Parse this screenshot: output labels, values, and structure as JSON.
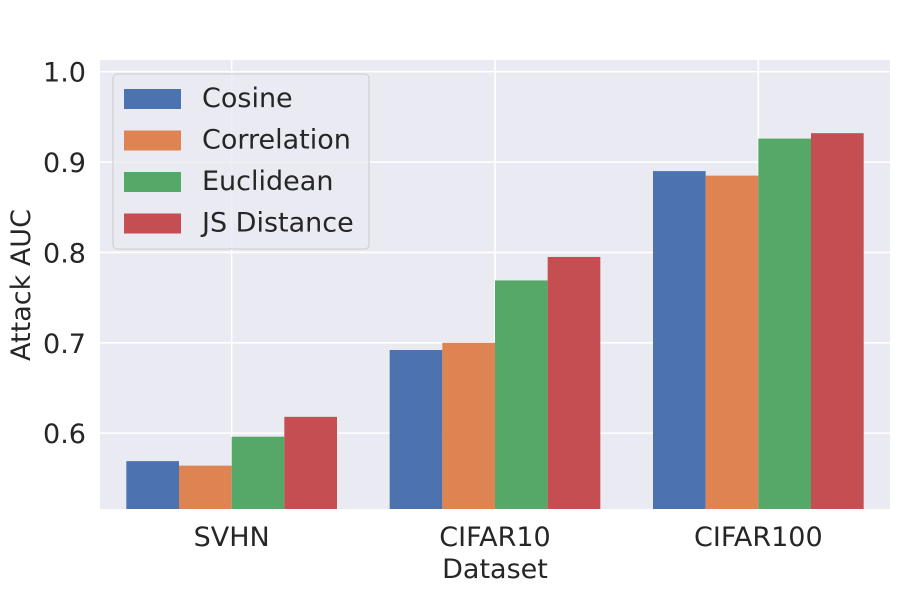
{
  "chart_data": {
    "type": "bar",
    "title": "",
    "xlabel": "Dataset",
    "ylabel": "Attack AUC",
    "categories": [
      "SVHN",
      "CIFAR10",
      "CIFAR100"
    ],
    "series": [
      {
        "name": "Cosine",
        "color": "#4c72b0",
        "values": [
          0.569,
          0.692,
          0.89
        ]
      },
      {
        "name": "Correlation",
        "color": "#dd8452",
        "values": [
          0.564,
          0.7,
          0.885
        ]
      },
      {
        "name": "Euclidean",
        "color": "#55a868",
        "values": [
          0.596,
          0.769,
          0.926
        ]
      },
      {
        "name": "JS Distance",
        "color": "#c44e52",
        "values": [
          0.618,
          0.795,
          0.932
        ]
      }
    ],
    "ylim": [
      0.516,
      1.013
    ],
    "yticks": [
      "0.6",
      "0.7",
      "0.8",
      "0.9",
      "1.0"
    ],
    "grid": true,
    "legend_position": "top-left",
    "background": "#eaeaf2"
  }
}
